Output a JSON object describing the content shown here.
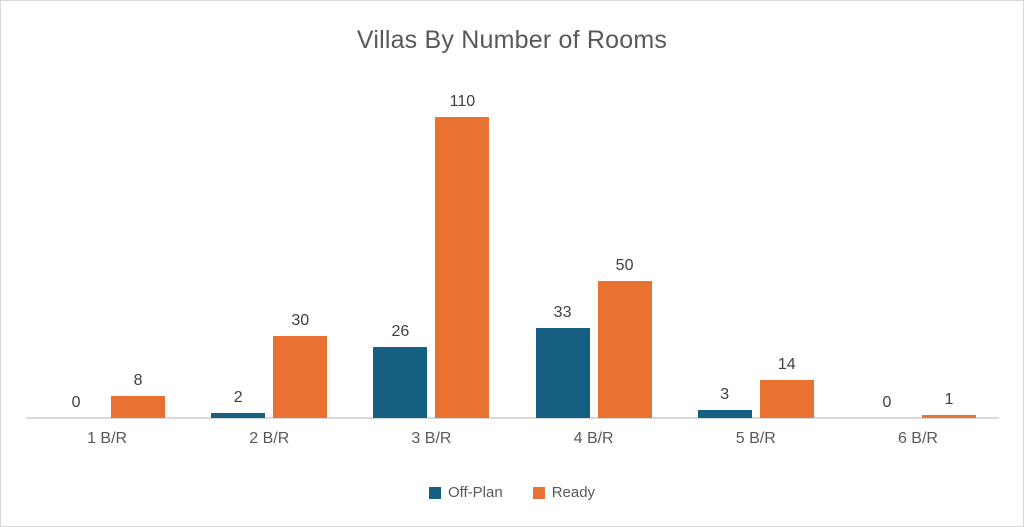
{
  "chart_data": {
    "type": "bar",
    "title": "Villas By Number of Rooms",
    "xlabel": "",
    "ylabel": "",
    "categories": [
      "1 B/R",
      "2 B/R",
      "3 B/R",
      "4 B/R",
      "5 B/R",
      "6 B/R"
    ],
    "series": [
      {
        "name": "Off-Plan",
        "color": "#156082",
        "values": [
          0,
          2,
          26,
          33,
          3,
          0
        ]
      },
      {
        "name": "Ready",
        "color": "#E97132",
        "values": [
          8,
          30,
          110,
          50,
          14,
          1
        ]
      }
    ],
    "ylim": [
      0,
      120
    ],
    "grid": false,
    "data_labels": true,
    "legend_position": "bottom"
  },
  "style": {
    "axis_line_color": "#d9d9d9",
    "title_color": "#595959",
    "label_color": "#404040",
    "category_color": "#595959",
    "background": "#ffffff"
  }
}
